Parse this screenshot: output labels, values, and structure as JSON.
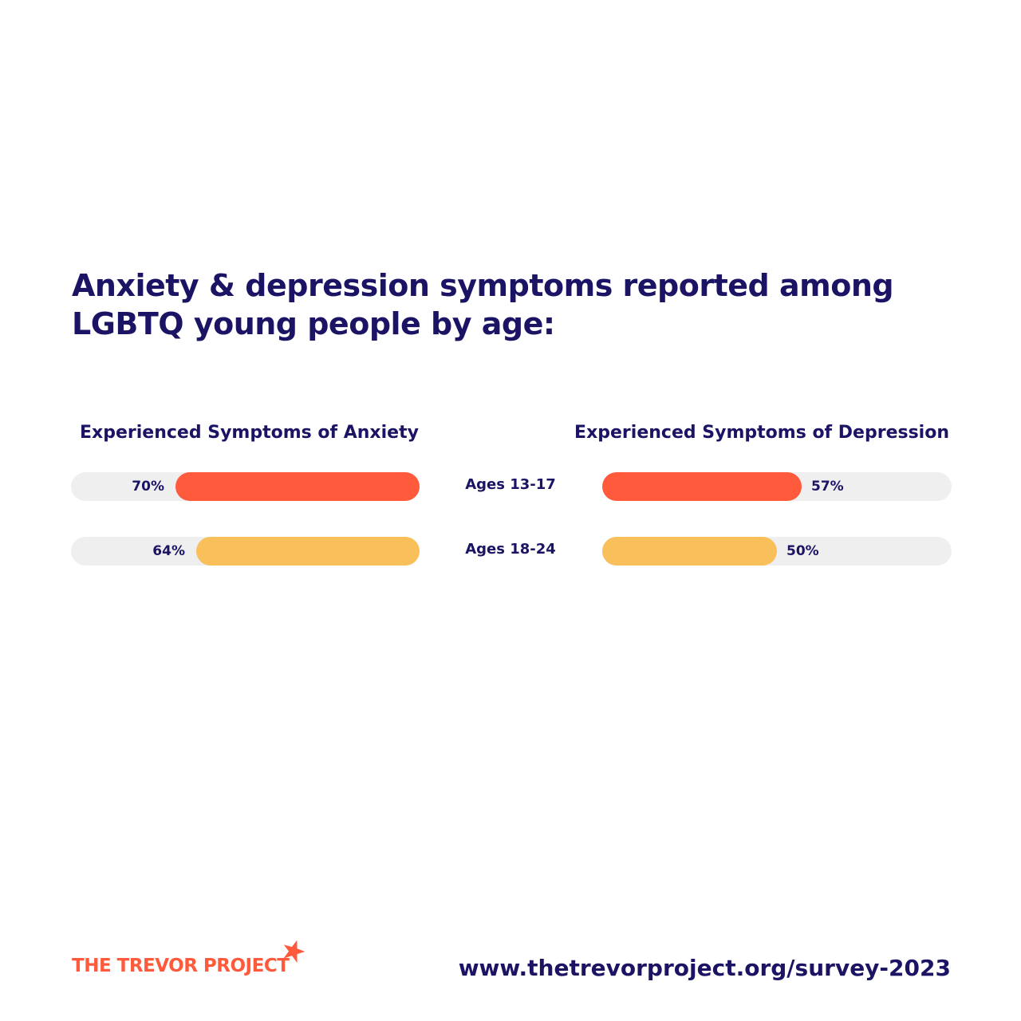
{
  "title": "Anxiety & depression symptoms reported among LGBTQ young people by age:",
  "colors": {
    "track": "#efefef",
    "ages_13_17": "#ff5a3c",
    "ages_18_24": "#f9bf5b",
    "text": "#1b1464"
  },
  "chart_data": [
    {
      "type": "bar",
      "title": "Experienced Symptoms of Anxiety",
      "categories": [
        "Ages 13-17",
        "Ages 18-24"
      ],
      "values": [
        70,
        64
      ],
      "value_labels": [
        "70%",
        "64%"
      ],
      "ylim": [
        0,
        100
      ],
      "orientation": "horizontal",
      "direction": "right-to-left"
    },
    {
      "type": "bar",
      "title": "Experienced Symptoms of Depression",
      "categories": [
        "Ages 13-17",
        "Ages 18-24"
      ],
      "values": [
        57,
        50
      ],
      "value_labels": [
        "57%",
        "50%"
      ],
      "ylim": [
        0,
        100
      ],
      "orientation": "horizontal",
      "direction": "left-to-right"
    }
  ],
  "footer": {
    "logo_text": "THE TREVOR PROJECT",
    "url": "www.thetrevorproject.org/survey-2023"
  }
}
